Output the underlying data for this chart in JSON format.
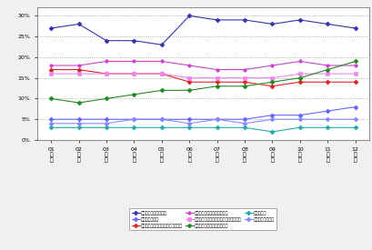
{
  "x_vals": [
    1,
    2,
    3,
    4,
    5,
    6,
    7,
    8,
    9,
    10,
    11,
    12
  ],
  "series": [
    {
      "label": "収入をたくさん得たい",
      "color": "#3333AA",
      "marker": "D",
      "ms": 2.5,
      "lw": 0.8,
      "values": [
        27,
        28,
        24,
        24,
        23,
        30,
        29,
        29,
        28,
        29,
        28,
        27
      ]
    },
    {
      "label": "楽しく働きたい",
      "color": "#6666FF",
      "marker": "D",
      "ms": 2.5,
      "lw": 0.8,
      "values": [
        5,
        5,
        5,
        5,
        5,
        5,
        5,
        5,
        6,
        6,
        7,
        8
      ]
    },
    {
      "label": "自分の能力を活かした仕事をしたい",
      "color": "#DD2222",
      "marker": "D",
      "ms": 2.5,
      "lw": 0.8,
      "values": [
        17,
        17,
        16,
        16,
        16,
        14,
        14,
        14,
        13,
        14,
        14,
        14
      ]
    },
    {
      "label": "東人の役に立つ仕事をしたい",
      "color": "#CC44CC",
      "marker": "o",
      "ms": 2.5,
      "lw": 0.8,
      "values": [
        18,
        18,
        19,
        19,
        19,
        18,
        17,
        17,
        18,
        19,
        18,
        18
      ]
    },
    {
      "label": "アドバイスや指示を聞いて仕事をしたい",
      "color": "#EE88EE",
      "marker": "s",
      "ms": 2.5,
      "lw": 0.8,
      "values": [
        16,
        16,
        16,
        16,
        16,
        15,
        15,
        15,
        15,
        16,
        16,
        16
      ]
    },
    {
      "label": "人のためになる仕事をしたい",
      "color": "#228822",
      "marker": "D",
      "ms": 2.5,
      "lw": 0.8,
      "values": [
        10,
        9,
        10,
        11,
        12,
        12,
        13,
        13,
        14,
        15,
        17,
        19
      ]
    },
    {
      "label": "楽勝したい",
      "color": "#22AAAA",
      "marker": "D",
      "ms": 2.5,
      "lw": 0.8,
      "values": [
        3,
        3,
        3,
        3,
        3,
        3,
        3,
        3,
        2,
        3,
        3,
        3
      ]
    },
    {
      "label": "社会に貢献したい",
      "color": "#8888FF",
      "marker": "D",
      "ms": 2.5,
      "lw": 0.8,
      "values": [
        4,
        4,
        4,
        5,
        5,
        4,
        5,
        4,
        5,
        5,
        5,
        5
      ]
    }
  ],
  "ylim": [
    0,
    32
  ],
  "yticks": [
    0,
    5,
    10,
    15,
    20,
    25,
    30
  ],
  "ytick_labels": [
    "0%",
    "5%",
    "10%",
    "15%",
    "20%",
    "25%",
    "30%"
  ],
  "background_color": "#F0F0F0",
  "plot_bg_color": "#FFFFFF",
  "grid_color": "#999999",
  "legend_ncol": 3
}
